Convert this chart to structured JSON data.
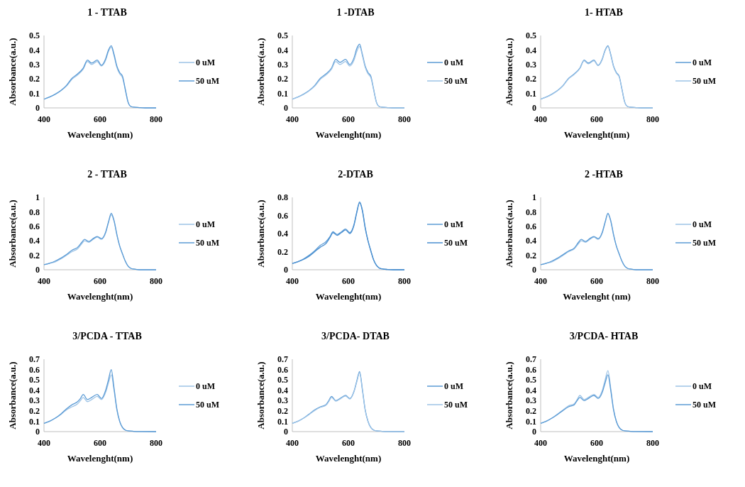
{
  "chart_data": [
    {
      "type": "line",
      "title": "1 - TTAB",
      "xlabel": "Wavelenght(nm)",
      "ylabel": "Absorbance(a.u.)",
      "legend": "right",
      "xlim": [
        400,
        800
      ],
      "xticks": [
        400,
        600,
        800
      ],
      "ylim": [
        0,
        0.5
      ],
      "yticks": [
        0,
        0.1,
        0.2,
        0.3,
        0.4,
        0.5
      ],
      "x": [
        400,
        420,
        440,
        460,
        480,
        500,
        520,
        540,
        555,
        570,
        590,
        605,
        620,
        630,
        640,
        650,
        660,
        670,
        680,
        690,
        700,
        710,
        720,
        740,
        760,
        800
      ],
      "series": [
        {
          "name": "0 uM",
          "color": "#9dc3e6",
          "values": [
            0.06,
            0.075,
            0.093,
            0.118,
            0.15,
            0.198,
            0.228,
            0.268,
            0.32,
            0.3,
            0.32,
            0.29,
            0.33,
            0.39,
            0.42,
            0.36,
            0.28,
            0.235,
            0.21,
            0.125,
            0.04,
            0.01,
            0.005,
            0.002,
            0,
            0
          ]
        },
        {
          "name": "50 uM",
          "color": "#5b9bd5",
          "values": [
            0.06,
            0.075,
            0.095,
            0.12,
            0.155,
            0.205,
            0.235,
            0.275,
            0.33,
            0.31,
            0.33,
            0.295,
            0.34,
            0.4,
            0.43,
            0.37,
            0.29,
            0.245,
            0.22,
            0.13,
            0.04,
            0.01,
            0.005,
            0.002,
            0,
            0
          ]
        }
      ]
    },
    {
      "type": "line",
      "title": "1 -DTAB",
      "xlabel": "Wavelenght(nm)",
      "ylabel": "Absorbance(a.u.)",
      "legend": "right",
      "xlim": [
        400,
        800
      ],
      "xticks": [
        400,
        600,
        800
      ],
      "ylim": [
        0,
        0.5
      ],
      "yticks": [
        0,
        0.1,
        0.2,
        0.3,
        0.4,
        0.5
      ],
      "x": [
        400,
        420,
        440,
        460,
        480,
        500,
        520,
        540,
        555,
        570,
        590,
        605,
        620,
        630,
        640,
        650,
        660,
        670,
        680,
        690,
        700,
        710,
        720,
        740,
        760,
        800
      ],
      "series": [
        {
          "name": "0 uM",
          "color": "#5b9bd5",
          "values": [
            0.06,
            0.075,
            0.095,
            0.12,
            0.155,
            0.205,
            0.235,
            0.275,
            0.335,
            0.315,
            0.335,
            0.3,
            0.345,
            0.41,
            0.44,
            0.37,
            0.29,
            0.245,
            0.22,
            0.13,
            0.04,
            0.01,
            0.005,
            0.002,
            0,
            0
          ]
        },
        {
          "name": "50 uM",
          "color": "#9dc3e6",
          "values": [
            0.06,
            0.075,
            0.093,
            0.118,
            0.15,
            0.198,
            0.228,
            0.268,
            0.32,
            0.3,
            0.32,
            0.29,
            0.33,
            0.39,
            0.425,
            0.36,
            0.28,
            0.235,
            0.21,
            0.125,
            0.04,
            0.01,
            0.005,
            0.002,
            0,
            0
          ]
        }
      ]
    },
    {
      "type": "line",
      "title": "1- HTAB",
      "xlabel": "Wavelenght(nm)",
      "ylabel": "Absorbance(a.u.)",
      "legend": "right",
      "xlim": [
        400,
        800
      ],
      "xticks": [
        400,
        600,
        800
      ],
      "ylim": [
        0,
        0.5
      ],
      "yticks": [
        0,
        0.1,
        0.2,
        0.3,
        0.4,
        0.5
      ],
      "x": [
        400,
        420,
        440,
        460,
        480,
        500,
        520,
        540,
        555,
        570,
        590,
        605,
        620,
        630,
        640,
        650,
        660,
        670,
        680,
        690,
        700,
        710,
        720,
        740,
        760,
        800
      ],
      "series": [
        {
          "name": "0 uM",
          "color": "#5b9bd5",
          "values": [
            0.06,
            0.075,
            0.095,
            0.12,
            0.155,
            0.205,
            0.235,
            0.275,
            0.33,
            0.31,
            0.33,
            0.295,
            0.34,
            0.4,
            0.43,
            0.37,
            0.29,
            0.245,
            0.22,
            0.13,
            0.04,
            0.01,
            0.005,
            0.002,
            0,
            0
          ]
        },
        {
          "name": "50 uM",
          "color": "#9dc3e6",
          "values": [
            0.06,
            0.075,
            0.094,
            0.119,
            0.153,
            0.202,
            0.232,
            0.272,
            0.325,
            0.305,
            0.325,
            0.292,
            0.335,
            0.395,
            0.425,
            0.365,
            0.285,
            0.24,
            0.215,
            0.128,
            0.04,
            0.01,
            0.005,
            0.002,
            0,
            0
          ]
        }
      ]
    },
    {
      "type": "line",
      "title": "2 - TTAB",
      "xlabel": "Wavelenght(nm)",
      "ylabel": "Absorbance(a.u.)",
      "legend": "right",
      "xlim": [
        400,
        800
      ],
      "xticks": [
        400,
        600,
        800
      ],
      "ylim": [
        0,
        1
      ],
      "yticks": [
        0,
        0.2,
        0.4,
        0.6,
        0.8,
        1
      ],
      "x": [
        400,
        420,
        440,
        460,
        480,
        500,
        520,
        535,
        545,
        560,
        575,
        590,
        605,
        620,
        630,
        640,
        650,
        660,
        670,
        680,
        690,
        700,
        710,
        720,
        740,
        760,
        800
      ],
      "series": [
        {
          "name": "0 uM",
          "color": "#9dc3e6",
          "values": [
            0.07,
            0.09,
            0.11,
            0.15,
            0.2,
            0.25,
            0.29,
            0.36,
            0.4,
            0.38,
            0.42,
            0.45,
            0.42,
            0.51,
            0.65,
            0.76,
            0.67,
            0.48,
            0.33,
            0.22,
            0.12,
            0.05,
            0.02,
            0.01,
            0,
            0,
            0
          ]
        },
        {
          "name": "50 uM",
          "color": "#5b9bd5",
          "values": [
            0.07,
            0.09,
            0.12,
            0.16,
            0.21,
            0.27,
            0.31,
            0.38,
            0.42,
            0.39,
            0.43,
            0.46,
            0.43,
            0.52,
            0.66,
            0.78,
            0.68,
            0.49,
            0.33,
            0.22,
            0.12,
            0.05,
            0.02,
            0.01,
            0,
            0,
            0
          ]
        }
      ]
    },
    {
      "type": "line",
      "title": "2-DTAB",
      "xlabel": "Wavelenght(nm)",
      "ylabel": "Absorbance(a.u.)",
      "legend": "right",
      "xlim": [
        400,
        800
      ],
      "xticks": [
        400,
        600,
        800
      ],
      "ylim": [
        0,
        0.8
      ],
      "yticks": [
        0,
        0.2,
        0.4,
        0.6,
        0.8
      ],
      "x": [
        400,
        420,
        440,
        460,
        480,
        500,
        520,
        535,
        545,
        560,
        575,
        590,
        605,
        620,
        630,
        640,
        650,
        660,
        670,
        680,
        690,
        700,
        710,
        720,
        740,
        760,
        800
      ],
      "series": [
        {
          "name": "0 uM",
          "color": "#5b9bd5",
          "values": [
            0.07,
            0.09,
            0.12,
            0.16,
            0.21,
            0.27,
            0.31,
            0.37,
            0.42,
            0.39,
            0.42,
            0.45,
            0.41,
            0.5,
            0.64,
            0.75,
            0.66,
            0.47,
            0.32,
            0.21,
            0.11,
            0.05,
            0.02,
            0.01,
            0.003,
            0,
            0
          ]
        },
        {
          "name": "50 uM",
          "color": "#4a8fd0",
          "values": [
            0.07,
            0.09,
            0.115,
            0.15,
            0.2,
            0.25,
            0.29,
            0.36,
            0.41,
            0.38,
            0.41,
            0.44,
            0.4,
            0.49,
            0.63,
            0.74,
            0.65,
            0.46,
            0.32,
            0.21,
            0.11,
            0.05,
            0.02,
            0.01,
            0.003,
            0,
            0
          ]
        }
      ]
    },
    {
      "type": "line",
      "title": "2 -HTAB",
      "xlabel": "Wavelenght (nm)",
      "ylabel": "Absorbance(a.u.)",
      "legend": "right",
      "xlim": [
        400,
        800
      ],
      "xticks": [
        400,
        600,
        800
      ],
      "ylim": [
        0,
        1
      ],
      "yticks": [
        0,
        0.2,
        0.4,
        0.6,
        0.8,
        1
      ],
      "x": [
        400,
        420,
        440,
        460,
        480,
        500,
        520,
        535,
        545,
        560,
        575,
        590,
        605,
        620,
        630,
        640,
        650,
        660,
        670,
        680,
        690,
        700,
        710,
        720,
        740,
        760,
        800
      ],
      "series": [
        {
          "name": "0 uM",
          "color": "#9dc3e6",
          "values": [
            0.07,
            0.09,
            0.11,
            0.15,
            0.2,
            0.25,
            0.29,
            0.36,
            0.4,
            0.38,
            0.42,
            0.45,
            0.42,
            0.51,
            0.65,
            0.77,
            0.67,
            0.48,
            0.33,
            0.22,
            0.12,
            0.05,
            0.02,
            0.01,
            0,
            0,
            0
          ]
        },
        {
          "name": "50 uM",
          "color": "#5b9bd5",
          "values": [
            0.07,
            0.09,
            0.12,
            0.16,
            0.21,
            0.26,
            0.3,
            0.38,
            0.42,
            0.39,
            0.43,
            0.46,
            0.43,
            0.52,
            0.66,
            0.78,
            0.68,
            0.49,
            0.33,
            0.22,
            0.12,
            0.05,
            0.02,
            0.01,
            0,
            0,
            0
          ]
        }
      ]
    },
    {
      "type": "line",
      "title": "3/PCDA - TTAB",
      "xlabel": "Wavelenght(nm)",
      "ylabel": "Absorbance(a.u.)",
      "legend": "right",
      "xlim": [
        400,
        800
      ],
      "xticks": [
        400,
        600,
        800
      ],
      "ylim": [
        0,
        0.7
      ],
      "yticks": [
        0,
        0.1,
        0.2,
        0.3,
        0.4,
        0.5,
        0.6,
        0.7
      ],
      "x": [
        400,
        420,
        440,
        460,
        480,
        500,
        520,
        530,
        540,
        555,
        570,
        590,
        605,
        620,
        630,
        640,
        650,
        660,
        670,
        680,
        690,
        700,
        720,
        740,
        800
      ],
      "series": [
        {
          "name": "0 uM",
          "color": "#9dc3e6",
          "values": [
            0.08,
            0.1,
            0.13,
            0.165,
            0.21,
            0.24,
            0.27,
            0.3,
            0.33,
            0.29,
            0.31,
            0.34,
            0.31,
            0.38,
            0.47,
            0.55,
            0.4,
            0.21,
            0.1,
            0.04,
            0.015,
            0.007,
            0.003,
            0.001,
            0
          ]
        },
        {
          "name": "50 uM",
          "color": "#5b9bd5",
          "values": [
            0.08,
            0.1,
            0.13,
            0.17,
            0.22,
            0.26,
            0.29,
            0.32,
            0.36,
            0.31,
            0.33,
            0.36,
            0.32,
            0.4,
            0.5,
            0.6,
            0.42,
            0.22,
            0.1,
            0.04,
            0.015,
            0.007,
            0.003,
            0.001,
            0
          ]
        }
      ]
    },
    {
      "type": "line",
      "title": "3/PCDA- DTAB",
      "xlabel": "Wavelenght(nm)",
      "ylabel": "Absorbance(a.u.)",
      "legend": "right",
      "xlim": [
        400,
        800
      ],
      "xticks": [
        400,
        600,
        800
      ],
      "ylim": [
        0,
        0.7
      ],
      "yticks": [
        0,
        0.1,
        0.2,
        0.3,
        0.4,
        0.5,
        0.6,
        0.7
      ],
      "x": [
        400,
        420,
        440,
        460,
        480,
        500,
        520,
        530,
        540,
        555,
        570,
        590,
        605,
        620,
        630,
        640,
        650,
        660,
        670,
        680,
        690,
        700,
        720,
        740,
        800
      ],
      "series": [
        {
          "name": "0 uM",
          "color": "#5b9bd5",
          "values": [
            0.08,
            0.1,
            0.13,
            0.17,
            0.21,
            0.24,
            0.26,
            0.3,
            0.34,
            0.3,
            0.32,
            0.35,
            0.32,
            0.39,
            0.49,
            0.58,
            0.41,
            0.21,
            0.1,
            0.04,
            0.015,
            0.007,
            0.003,
            0.001,
            0
          ]
        },
        {
          "name": "50 uM",
          "color": "#9dc3e6",
          "values": [
            0.08,
            0.1,
            0.13,
            0.165,
            0.205,
            0.235,
            0.255,
            0.29,
            0.33,
            0.295,
            0.315,
            0.345,
            0.315,
            0.385,
            0.48,
            0.57,
            0.4,
            0.21,
            0.1,
            0.04,
            0.015,
            0.007,
            0.003,
            0.001,
            0
          ]
        }
      ]
    },
    {
      "type": "line",
      "title": "3/PCDA- HTAB",
      "xlabel": "Wavelenght(nm)",
      "ylabel": "Absorbance(a.u.)",
      "legend": "right",
      "xlim": [
        400,
        800
      ],
      "xticks": [
        400,
        600,
        800
      ],
      "ylim": [
        0,
        0.7
      ],
      "yticks": [
        0,
        0.1,
        0.2,
        0.3,
        0.4,
        0.5,
        0.6,
        0.7
      ],
      "x": [
        400,
        420,
        440,
        460,
        480,
        500,
        520,
        530,
        540,
        555,
        570,
        590,
        605,
        620,
        630,
        640,
        650,
        660,
        670,
        680,
        690,
        700,
        720,
        740,
        800
      ],
      "series": [
        {
          "name": "0 uM",
          "color": "#9dc3e6",
          "values": [
            0.08,
            0.1,
            0.13,
            0.17,
            0.21,
            0.25,
            0.27,
            0.31,
            0.35,
            0.31,
            0.33,
            0.36,
            0.33,
            0.4,
            0.5,
            0.59,
            0.42,
            0.22,
            0.1,
            0.04,
            0.015,
            0.007,
            0.003,
            0.001,
            0
          ]
        },
        {
          "name": "50 uM",
          "color": "#5b9bd5",
          "values": [
            0.08,
            0.1,
            0.13,
            0.165,
            0.205,
            0.24,
            0.26,
            0.3,
            0.33,
            0.3,
            0.32,
            0.35,
            0.32,
            0.38,
            0.47,
            0.55,
            0.4,
            0.21,
            0.1,
            0.04,
            0.015,
            0.007,
            0.003,
            0.001,
            0
          ]
        }
      ]
    }
  ]
}
